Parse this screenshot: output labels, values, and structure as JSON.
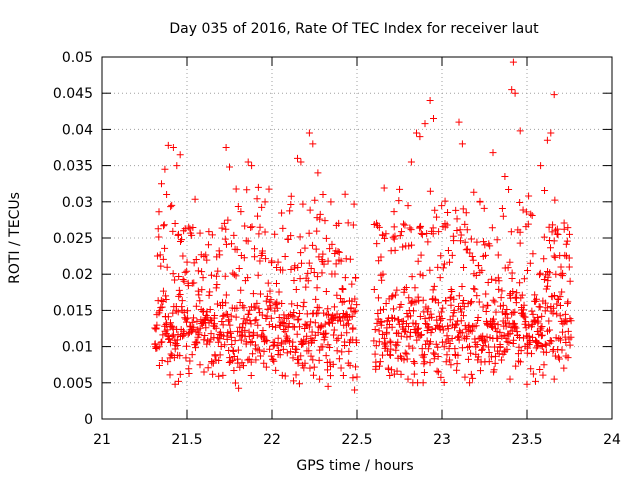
{
  "chart_data": {
    "type": "scatter",
    "title": "Day 035 of 2016, Rate Of TEC Index for receiver laut",
    "xlabel": "GPS time / hours",
    "ylabel": "ROTI / TECUs",
    "xlim": [
      21,
      24
    ],
    "ylim": [
      0,
      0.05
    ],
    "x_ticks": [
      "21",
      "21.5",
      "22",
      "22.5",
      "23",
      "23.5",
      "24"
    ],
    "y_ticks": [
      "0",
      "0.005",
      "0.01",
      "0.015",
      "0.02",
      "0.025",
      "0.03",
      "0.035",
      "0.04",
      "0.045",
      "0.05"
    ],
    "grid": true,
    "marker": "+",
    "color": "#ff0000",
    "series": [
      {
        "name": "ROTI",
        "x_range": [
          21.31,
          22.5
        ],
        "y_range": [
          0.004,
          0.04
        ],
        "points": [
          [
            21.35,
            0.0325
          ],
          [
            21.37,
            0.0345
          ],
          [
            21.39,
            0.0378
          ],
          [
            21.42,
            0.0375
          ],
          [
            21.44,
            0.035
          ],
          [
            21.46,
            0.0365
          ],
          [
            21.38,
            0.031
          ],
          [
            21.41,
            0.0295
          ],
          [
            21.43,
            0.027
          ],
          [
            21.45,
            0.0255
          ],
          [
            21.48,
            0.026
          ],
          [
            21.51,
            0.0265
          ],
          [
            21.4,
            0.0061
          ],
          [
            21.43,
            0.0048
          ],
          [
            21.45,
            0.0052
          ],
          [
            21.6,
            0.0065
          ],
          [
            21.73,
            0.0375
          ],
          [
            21.75,
            0.0348
          ],
          [
            21.86,
            0.0355
          ],
          [
            21.88,
            0.035
          ],
          [
            21.92,
            0.032
          ],
          [
            22.15,
            0.036
          ],
          [
            22.17,
            0.0355
          ],
          [
            22.22,
            0.0395
          ],
          [
            22.24,
            0.038
          ],
          [
            22.27,
            0.034
          ],
          [
            22.3,
            0.031
          ],
          [
            22.28,
            0.0055
          ],
          [
            22.33,
            0.0045
          ],
          [
            22.42,
            0.006
          ],
          [
            22.5,
            0.0058
          ]
        ]
      },
      {
        "name": "ROTI",
        "x_range": [
          22.6,
          23.76
        ],
        "y_range": [
          0.005,
          0.05
        ],
        "points": [
          [
            22.85,
            0.0395
          ],
          [
            22.87,
            0.039
          ],
          [
            22.9,
            0.0408
          ],
          [
            22.93,
            0.044
          ],
          [
            22.95,
            0.0415
          ],
          [
            22.82,
            0.0355
          ],
          [
            23.1,
            0.041
          ],
          [
            23.12,
            0.038
          ],
          [
            23.3,
            0.0368
          ],
          [
            23.37,
            0.0335
          ],
          [
            23.41,
            0.0455
          ],
          [
            23.43,
            0.045
          ],
          [
            23.42,
            0.0493
          ],
          [
            23.46,
            0.0398
          ],
          [
            23.66,
            0.0448
          ],
          [
            23.64,
            0.0395
          ],
          [
            23.62,
            0.0385
          ],
          [
            23.58,
            0.035
          ],
          [
            22.72,
            0.0062
          ],
          [
            22.8,
            0.0055
          ],
          [
            23.4,
            0.0055
          ],
          [
            23.5,
            0.0048
          ],
          [
            23.55,
            0.0052
          ],
          [
            23.66,
            0.0055
          ],
          [
            23.75,
            0.0255
          ],
          [
            23.7,
            0.021
          ]
        ]
      }
    ]
  }
}
